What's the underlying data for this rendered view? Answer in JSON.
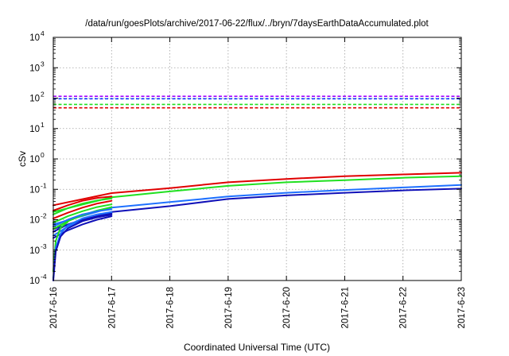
{
  "chart_data": {
    "type": "line",
    "title": "/data/run/goesPlots/archive/2017-06-22/flux/../bryn/7daysEarthDataAccumulated.plot",
    "xlabel": "Coordinated Universal Time (UTC)",
    "ylabel": "cSv",
    "x_scale": "time",
    "y_scale": "log",
    "xlim": [
      "2017-06-16",
      "2017-06-23"
    ],
    "ylim": [
      0.0001,
      10000
    ],
    "grid": true,
    "legend": "none",
    "x_ticks": [
      "2017-6-16",
      "2017-6-17",
      "2017-6-18",
      "2017-6-19",
      "2017-6-20",
      "2017-6-21",
      "2017-6-22",
      "2017-6-23"
    ],
    "y_ticks": [
      {
        "value": 0.0001,
        "base": "10",
        "exp": "-4"
      },
      {
        "value": 0.001,
        "base": "10",
        "exp": "-3"
      },
      {
        "value": 0.01,
        "base": "10",
        "exp": "-2"
      },
      {
        "value": 0.1,
        "base": "10",
        "exp": "-1"
      },
      {
        "value": 1,
        "base": "10",
        "exp": "0"
      },
      {
        "value": 10,
        "base": "10",
        "exp": "1"
      },
      {
        "value": 100,
        "base": "10",
        "exp": "2"
      },
      {
        "value": 1000,
        "base": "10",
        "exp": "3"
      },
      {
        "value": 10000,
        "base": "10",
        "exp": "4"
      }
    ],
    "thresholds": [
      {
        "y": 115,
        "color": "#a000ff"
      },
      {
        "y": 95,
        "color": "#1040ff"
      },
      {
        "y": 62,
        "color": "#20e020"
      },
      {
        "y": 48,
        "color": "#e00000"
      }
    ],
    "series": [
      {
        "color": "#e00000",
        "points": [
          [
            "2017-06-16T00:00",
            0.03
          ],
          [
            "2017-06-17T00:00",
            0.075
          ],
          [
            "2017-06-18T00:00",
            0.11
          ],
          [
            "2017-06-19T00:00",
            0.17
          ],
          [
            "2017-06-20T00:00",
            0.22
          ],
          [
            "2017-06-21T00:00",
            0.27
          ],
          [
            "2017-06-22T00:00",
            0.31
          ],
          [
            "2017-06-23T00:00",
            0.35
          ]
        ]
      },
      {
        "color": "#20e020",
        "points": [
          [
            "2017-06-16T00:00",
            0.018
          ],
          [
            "2017-06-17T00:00",
            0.055
          ],
          [
            "2017-06-18T00:00",
            0.085
          ],
          [
            "2017-06-19T00:00",
            0.13
          ],
          [
            "2017-06-20T00:00",
            0.17
          ],
          [
            "2017-06-21T00:00",
            0.2
          ],
          [
            "2017-06-22T00:00",
            0.24
          ],
          [
            "2017-06-23T00:00",
            0.27
          ]
        ]
      },
      {
        "color": "#1e70ff",
        "points": [
          [
            "2017-06-16T00:00",
            0.007
          ],
          [
            "2017-06-17T00:00",
            0.025
          ],
          [
            "2017-06-18T00:00",
            0.038
          ],
          [
            "2017-06-19T00:00",
            0.058
          ],
          [
            "2017-06-20T00:00",
            0.077
          ],
          [
            "2017-06-21T00:00",
            0.095
          ],
          [
            "2017-06-22T00:00",
            0.115
          ],
          [
            "2017-06-23T00:00",
            0.14
          ]
        ]
      },
      {
        "color": "#1010b8",
        "points": [
          [
            "2017-06-16T00:00",
            0.005
          ],
          [
            "2017-06-17T00:00",
            0.018
          ],
          [
            "2017-06-18T00:00",
            0.028
          ],
          [
            "2017-06-19T00:00",
            0.048
          ],
          [
            "2017-06-20T00:00",
            0.063
          ],
          [
            "2017-06-21T00:00",
            0.077
          ],
          [
            "2017-06-22T00:00",
            0.092
          ],
          [
            "2017-06-23T00:00",
            0.105
          ]
        ]
      },
      {
        "color": "#e00000",
        "points": [
          [
            "2017-06-16T00:00",
            0.02
          ],
          [
            "2017-06-16T06:00",
            0.03
          ],
          [
            "2017-06-16T12:00",
            0.042
          ],
          [
            "2017-06-16T18:00",
            0.052
          ],
          [
            "2017-06-17T00:00",
            0.058
          ]
        ]
      },
      {
        "color": "#e00000",
        "points": [
          [
            "2017-06-16T00:00",
            0.011
          ],
          [
            "2017-06-16T06:00",
            0.017
          ],
          [
            "2017-06-16T12:00",
            0.025
          ],
          [
            "2017-06-16T18:00",
            0.034
          ],
          [
            "2017-06-17T00:00",
            0.042
          ]
        ]
      },
      {
        "color": "#20e020",
        "points": [
          [
            "2017-06-16T00:00",
            0.015
          ],
          [
            "2017-06-16T06:00",
            0.024
          ],
          [
            "2017-06-16T12:00",
            0.034
          ],
          [
            "2017-06-16T18:00",
            0.043
          ],
          [
            "2017-06-17T00:00",
            0.05
          ]
        ]
      },
      {
        "color": "#20e020",
        "points": [
          [
            "2017-06-16T00:00",
            0.008
          ],
          [
            "2017-06-16T06:00",
            0.013
          ],
          [
            "2017-06-16T12:00",
            0.019
          ],
          [
            "2017-06-16T18:00",
            0.026
          ],
          [
            "2017-06-17T00:00",
            0.032
          ]
        ]
      },
      {
        "color": "#20e020",
        "points": [
          [
            "2017-06-16T00:00",
            0.005
          ],
          [
            "2017-06-16T06:00",
            0.009
          ],
          [
            "2017-06-16T12:00",
            0.014
          ],
          [
            "2017-06-16T18:00",
            0.02
          ],
          [
            "2017-06-17T00:00",
            0.026
          ]
        ]
      },
      {
        "color": "#1e70ff",
        "points": [
          [
            "2017-06-16T00:00",
            0.006
          ],
          [
            "2017-06-16T06:00",
            0.01
          ],
          [
            "2017-06-16T12:00",
            0.015
          ],
          [
            "2017-06-16T18:00",
            0.019
          ],
          [
            "2017-06-17T00:00",
            0.022
          ]
        ]
      },
      {
        "color": "#1e70ff",
        "points": [
          [
            "2017-06-16T00:00",
            0.003
          ],
          [
            "2017-06-16T06:00",
            0.006
          ],
          [
            "2017-06-16T12:00",
            0.009
          ],
          [
            "2017-06-16T18:00",
            0.013
          ],
          [
            "2017-06-17T00:00",
            0.017
          ]
        ]
      },
      {
        "color": "#1010b8",
        "points": [
          [
            "2017-06-16T00:00",
            0.004
          ],
          [
            "2017-06-16T06:00",
            0.007
          ],
          [
            "2017-06-16T12:00",
            0.01
          ],
          [
            "2017-06-16T18:00",
            0.013
          ],
          [
            "2017-06-17T00:00",
            0.016
          ]
        ]
      },
      {
        "color": "#1010b8",
        "points": [
          [
            "2017-06-16T00:00",
            0.0025
          ],
          [
            "2017-06-16T06:00",
            0.0045
          ],
          [
            "2017-06-16T12:00",
            0.007
          ],
          [
            "2017-06-16T18:00",
            0.01
          ],
          [
            "2017-06-17T00:00",
            0.013
          ]
        ]
      },
      {
        "color": "#20e020",
        "points": [
          [
            "2017-06-16T00:00",
            0.0002
          ],
          [
            "2017-06-16T01:00",
            0.002
          ],
          [
            "2017-06-16T03:00",
            0.0055
          ],
          [
            "2017-06-16T06:00",
            0.0085
          ]
        ]
      },
      {
        "color": "#1e70ff",
        "points": [
          [
            "2017-06-16T00:00",
            0.00012
          ],
          [
            "2017-06-16T01:00",
            0.0012
          ],
          [
            "2017-06-16T03:00",
            0.0035
          ],
          [
            "2017-06-16T06:00",
            0.0065
          ],
          [
            "2017-06-16T12:00",
            0.011
          ],
          [
            "2017-06-16T18:00",
            0.015
          ],
          [
            "2017-06-17T00:00",
            0.018
          ]
        ]
      },
      {
        "color": "#1010b8",
        "points": [
          [
            "2017-06-16T00:00",
            0.0001
          ],
          [
            "2017-06-16T01:00",
            0.0009
          ],
          [
            "2017-06-16T03:00",
            0.0028
          ],
          [
            "2017-06-16T06:00",
            0.0052
          ],
          [
            "2017-06-16T12:00",
            0.009
          ],
          [
            "2017-06-16T18:00",
            0.012
          ],
          [
            "2017-06-17T00:00",
            0.0145
          ]
        ]
      }
    ]
  }
}
